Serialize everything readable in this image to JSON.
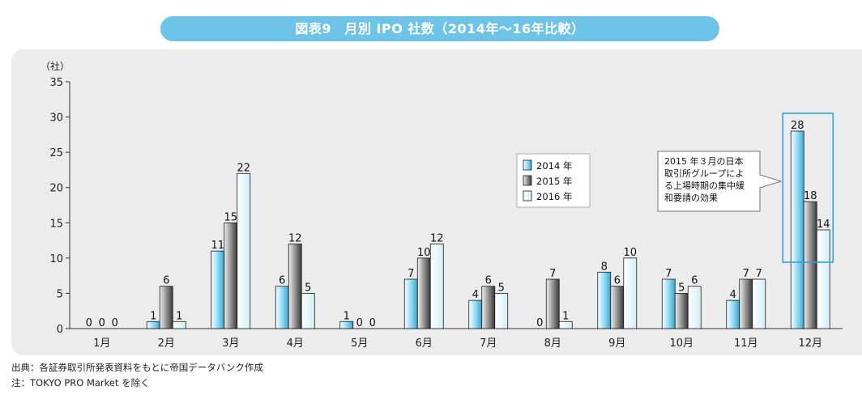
{
  "title": "図表9　月別 IPO 社数（2014年～16年比較）",
  "source_note": "出典：各証券取引所発表資料をもとに帝国データバンク作成",
  "note": "注：TOKYO PRO Market を除く",
  "colors": {
    "title_bg": "#6ec3e8",
    "panel_bg": "#ececec",
    "s2014": "#7fd0ee",
    "s2015": "#8a8a8a",
    "s2016": "#e6f6fc",
    "highlight": "#2aa4dc"
  },
  "chart_data": {
    "type": "bar",
    "categories": [
      "1月",
      "2月",
      "3月",
      "4月",
      "5月",
      "6月",
      "7月",
      "8月",
      "9月",
      "10月",
      "11月",
      "12月"
    ],
    "series": [
      {
        "name": "2014 年",
        "values": [
          0,
          1,
          11,
          6,
          1,
          7,
          4,
          0,
          8,
          7,
          4,
          28
        ]
      },
      {
        "name": "2015 年",
        "values": [
          0,
          6,
          15,
          12,
          0,
          10,
          6,
          7,
          6,
          5,
          7,
          18
        ]
      },
      {
        "name": "2016 年",
        "values": [
          0,
          1,
          22,
          5,
          0,
          12,
          5,
          1,
          10,
          6,
          7,
          14
        ]
      }
    ],
    "ylabel": "（社）",
    "ylim": [
      0,
      35
    ],
    "yticks": [
      0,
      5,
      10,
      15,
      20,
      25,
      30,
      35
    ],
    "legend_position": "upper-middle",
    "annotation": {
      "lines": [
        "2015 年３月の日本",
        "取引所グループによ",
        "る上場時期の集中緩",
        "和要請の効果"
      ],
      "target_category": "12月"
    }
  }
}
